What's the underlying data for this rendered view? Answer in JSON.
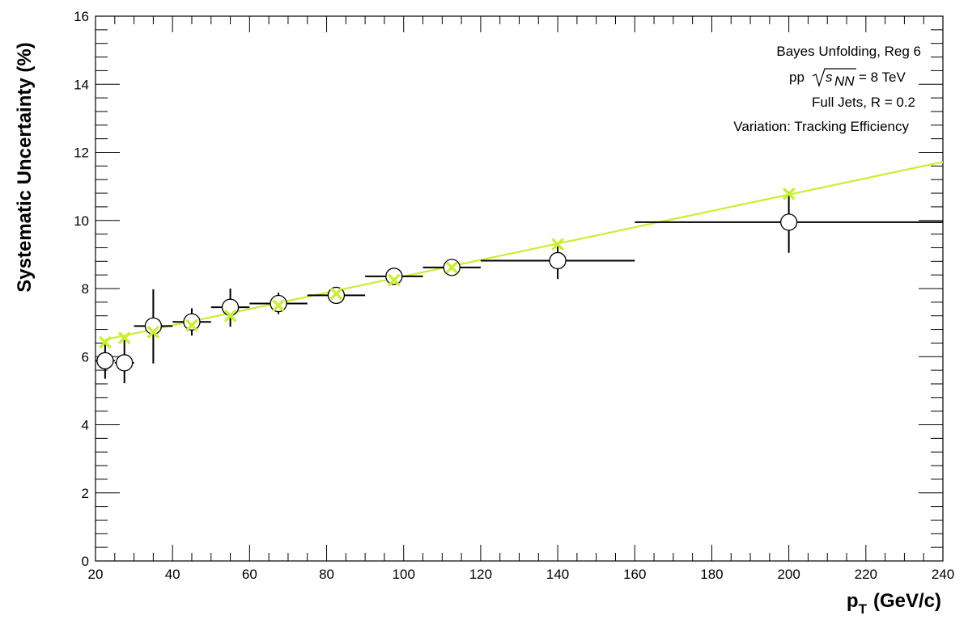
{
  "chart_data": {
    "type": "scatter",
    "xlabel": "p",
    "xlabel_sub": "T",
    "xlabel_unit": "(GeV/c)",
    "ylabel": "Systematic Uncertainty (%)",
    "xlim": [
      20,
      240
    ],
    "ylim": [
      0,
      16
    ],
    "x_ticks": [
      20,
      40,
      60,
      80,
      100,
      120,
      140,
      160,
      180,
      200,
      220,
      240
    ],
    "y_ticks": [
      0,
      2,
      4,
      6,
      8,
      10,
      12,
      14,
      16
    ],
    "annotations": {
      "line1": "Bayes Unfolding, Reg 6",
      "line2_prefix": "pp",
      "line2_s": "s",
      "line2_sub": "NN",
      "line2_suffix": "= 8 TeV",
      "line3": "Full Jets, R = 0.2",
      "line4": "Variation: Tracking Efficiency"
    },
    "colors": {
      "marker": "#000000",
      "fit": "#c8f030"
    },
    "series": [
      {
        "marker": "open-circle",
        "points": [
          {
            "x": 22.5,
            "y": 5.88,
            "xlo": 20,
            "xhi": 25,
            "ylo": 5.35,
            "yhi": 6.35
          },
          {
            "x": 27.5,
            "y": 5.82,
            "xlo": 25,
            "xhi": 30,
            "ylo": 5.22,
            "yhi": 6.5
          },
          {
            "x": 35,
            "y": 6.9,
            "xlo": 30,
            "xhi": 40,
            "ylo": 5.8,
            "yhi": 7.98
          },
          {
            "x": 45,
            "y": 7.02,
            "xlo": 40,
            "xhi": 50,
            "ylo": 6.62,
            "yhi": 7.42
          },
          {
            "x": 55,
            "y": 7.45,
            "xlo": 50,
            "xhi": 60,
            "ylo": 6.88,
            "yhi": 8.0
          },
          {
            "x": 67.5,
            "y": 7.56,
            "xlo": 60,
            "xhi": 75,
            "ylo": 7.25,
            "yhi": 7.88
          },
          {
            "x": 82.5,
            "y": 7.8,
            "xlo": 75,
            "xhi": 90,
            "ylo": 7.62,
            "yhi": 7.98
          },
          {
            "x": 97.5,
            "y": 8.36,
            "xlo": 90,
            "xhi": 105,
            "ylo": 8.2,
            "yhi": 8.52
          },
          {
            "x": 112.5,
            "y": 8.62,
            "xlo": 105,
            "xhi": 120,
            "ylo": 8.45,
            "yhi": 8.8
          },
          {
            "x": 140,
            "y": 8.82,
            "xlo": 120,
            "xhi": 160,
            "ylo": 8.28,
            "yhi": 9.35
          },
          {
            "x": 200,
            "y": 9.95,
            "xlo": 160,
            "xhi": 240,
            "ylo": 9.05,
            "yhi": 10.85
          }
        ]
      },
      {
        "marker": "cross",
        "points": [
          {
            "x": 22.5,
            "y": 6.42
          },
          {
            "x": 27.5,
            "y": 6.55
          },
          {
            "x": 35,
            "y": 6.72
          },
          {
            "x": 45,
            "y": 6.92
          },
          {
            "x": 55,
            "y": 7.2
          },
          {
            "x": 67.5,
            "y": 7.5
          },
          {
            "x": 82.5,
            "y": 7.85
          },
          {
            "x": 97.5,
            "y": 8.25
          },
          {
            "x": 112.5,
            "y": 8.62
          },
          {
            "x": 140,
            "y": 9.3
          },
          {
            "x": 200,
            "y": 10.78
          }
        ]
      }
    ],
    "fit_line": {
      "x": [
        22.5,
        240
      ],
      "y": [
        6.5,
        11.72
      ]
    }
  }
}
